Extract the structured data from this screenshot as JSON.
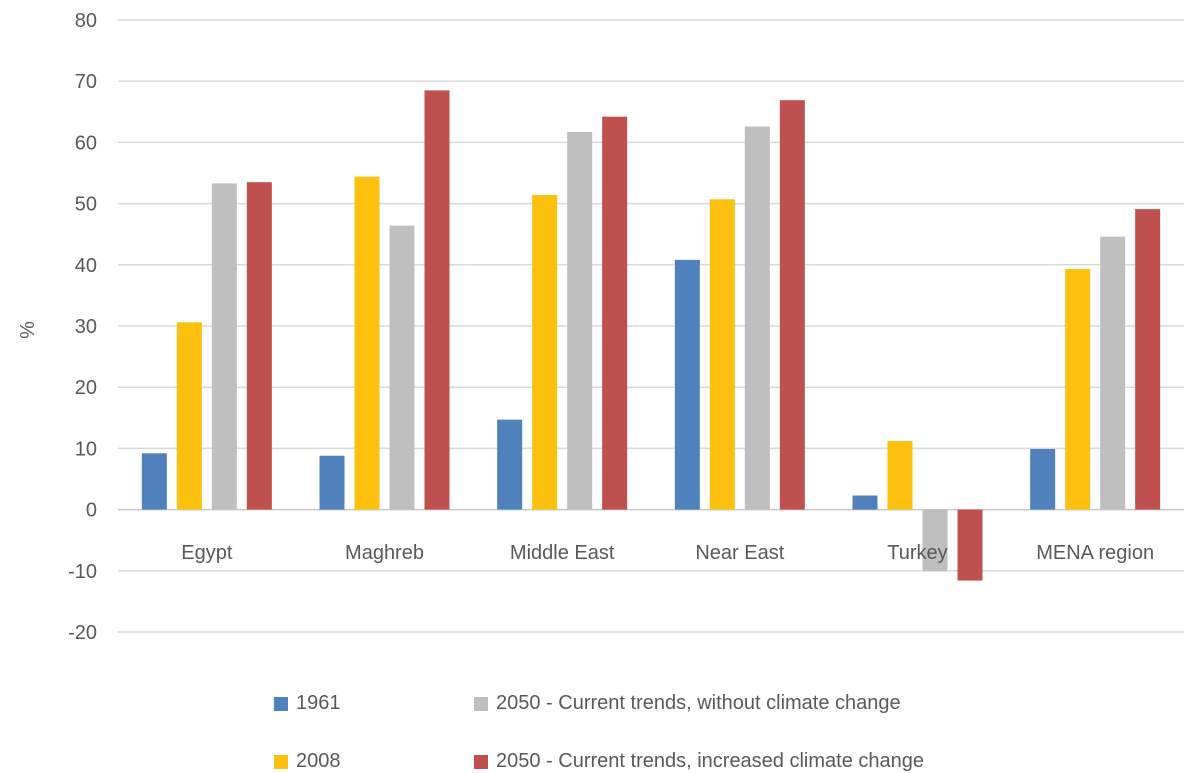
{
  "chart_data": {
    "type": "bar",
    "title": "",
    "xlabel": "",
    "ylabel": "%",
    "ylim": [
      -20,
      80
    ],
    "yticks": [
      -20,
      -10,
      0,
      10,
      20,
      30,
      40,
      50,
      60,
      70,
      80
    ],
    "grid": true,
    "legend_position": "bottom",
    "categories": [
      "Egypt",
      "Maghreb",
      "Middle East",
      "Near East",
      "Turkey",
      "MENA region"
    ],
    "series": [
      {
        "name": "1961",
        "color": "#4f81bd",
        "values": [
          9.2,
          8.8,
          14.7,
          40.8,
          2.3,
          9.9
        ]
      },
      {
        "name": "2008",
        "color": "#fdc00f",
        "values": [
          30.6,
          54.4,
          51.4,
          50.7,
          11.2,
          39.3
        ]
      },
      {
        "name": "2050 - Current trends, without climate change",
        "color": "#bfbfbf",
        "values": [
          53.3,
          46.4,
          61.7,
          62.6,
          -10.1,
          44.6
        ]
      },
      {
        "name": "2050 - Current trends, increased climate change",
        "color": "#c0504d",
        "values": [
          53.5,
          68.5,
          64.2,
          66.9,
          -11.6,
          49.1
        ]
      }
    ]
  }
}
